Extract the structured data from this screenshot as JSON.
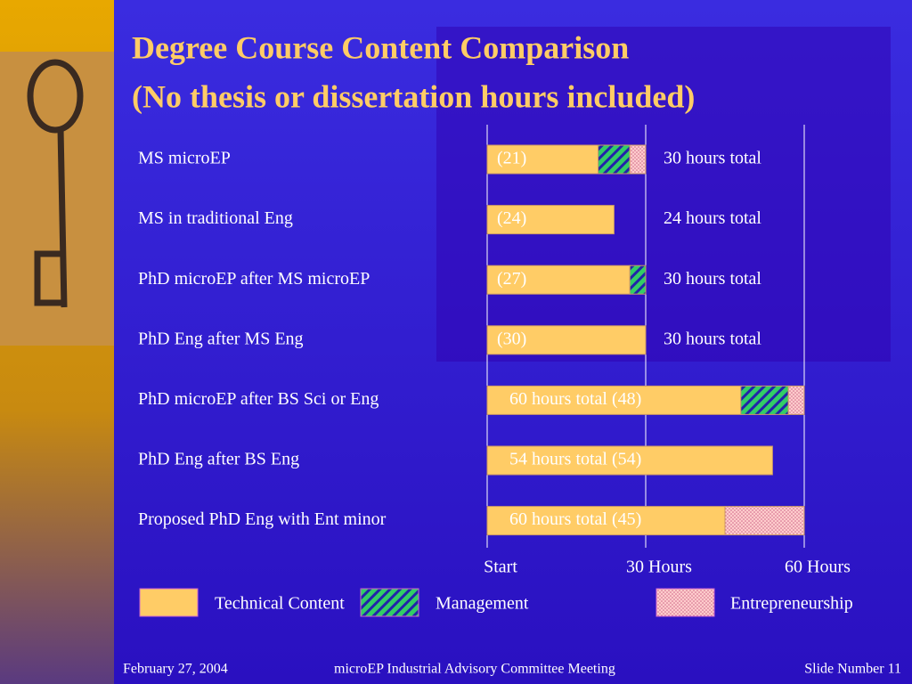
{
  "chart_data": {
    "type": "bar",
    "orientation": "horizontal",
    "stacked": true,
    "title": "Degree Course Content Comparison",
    "subtitle": "(No thesis or dissertation hours included)",
    "categories": [
      "MS microEP",
      "MS in traditional Eng",
      "PhD microEP after MS microEP",
      "PhD Eng after MS Eng",
      "PhD microEP after BS Sci or Eng",
      "PhD Eng after BS Eng",
      "Proposed PhD Eng with Ent minor"
    ],
    "series": [
      {
        "name": "Technical Content",
        "color": "#ffcc66",
        "values": [
          21,
          24,
          27,
          30,
          48,
          54,
          45
        ],
        "value_labels": [
          "(21)",
          "(24)",
          "(27)",
          "(30)",
          "(48)",
          "(54)",
          "(45)"
        ]
      },
      {
        "name": "Management",
        "color": "#33cc66",
        "values": [
          6,
          null,
          3,
          null,
          9,
          null,
          null
        ]
      },
      {
        "name": "Entrepreneurship",
        "color": "#ffcccc",
        "values": [
          3,
          null,
          null,
          null,
          3,
          null,
          15
        ]
      }
    ],
    "totals": [
      "30 hours total",
      "24 hours total",
      "30 hours total",
      "30 hours total",
      "60 hours total",
      "54 hours total",
      "60 hours total"
    ],
    "xlim": [
      0,
      60
    ],
    "xticks": [
      {
        "value": 0,
        "label": "Start"
      },
      {
        "value": 30,
        "label": "30 Hours"
      },
      {
        "value": 60,
        "label": "60 Hours"
      }
    ],
    "grid": true
  },
  "footer": {
    "date": "February 27, 2004",
    "meeting": "microEP Industrial Advisory Committee Meeting",
    "slide": "Slide Number 11"
  }
}
